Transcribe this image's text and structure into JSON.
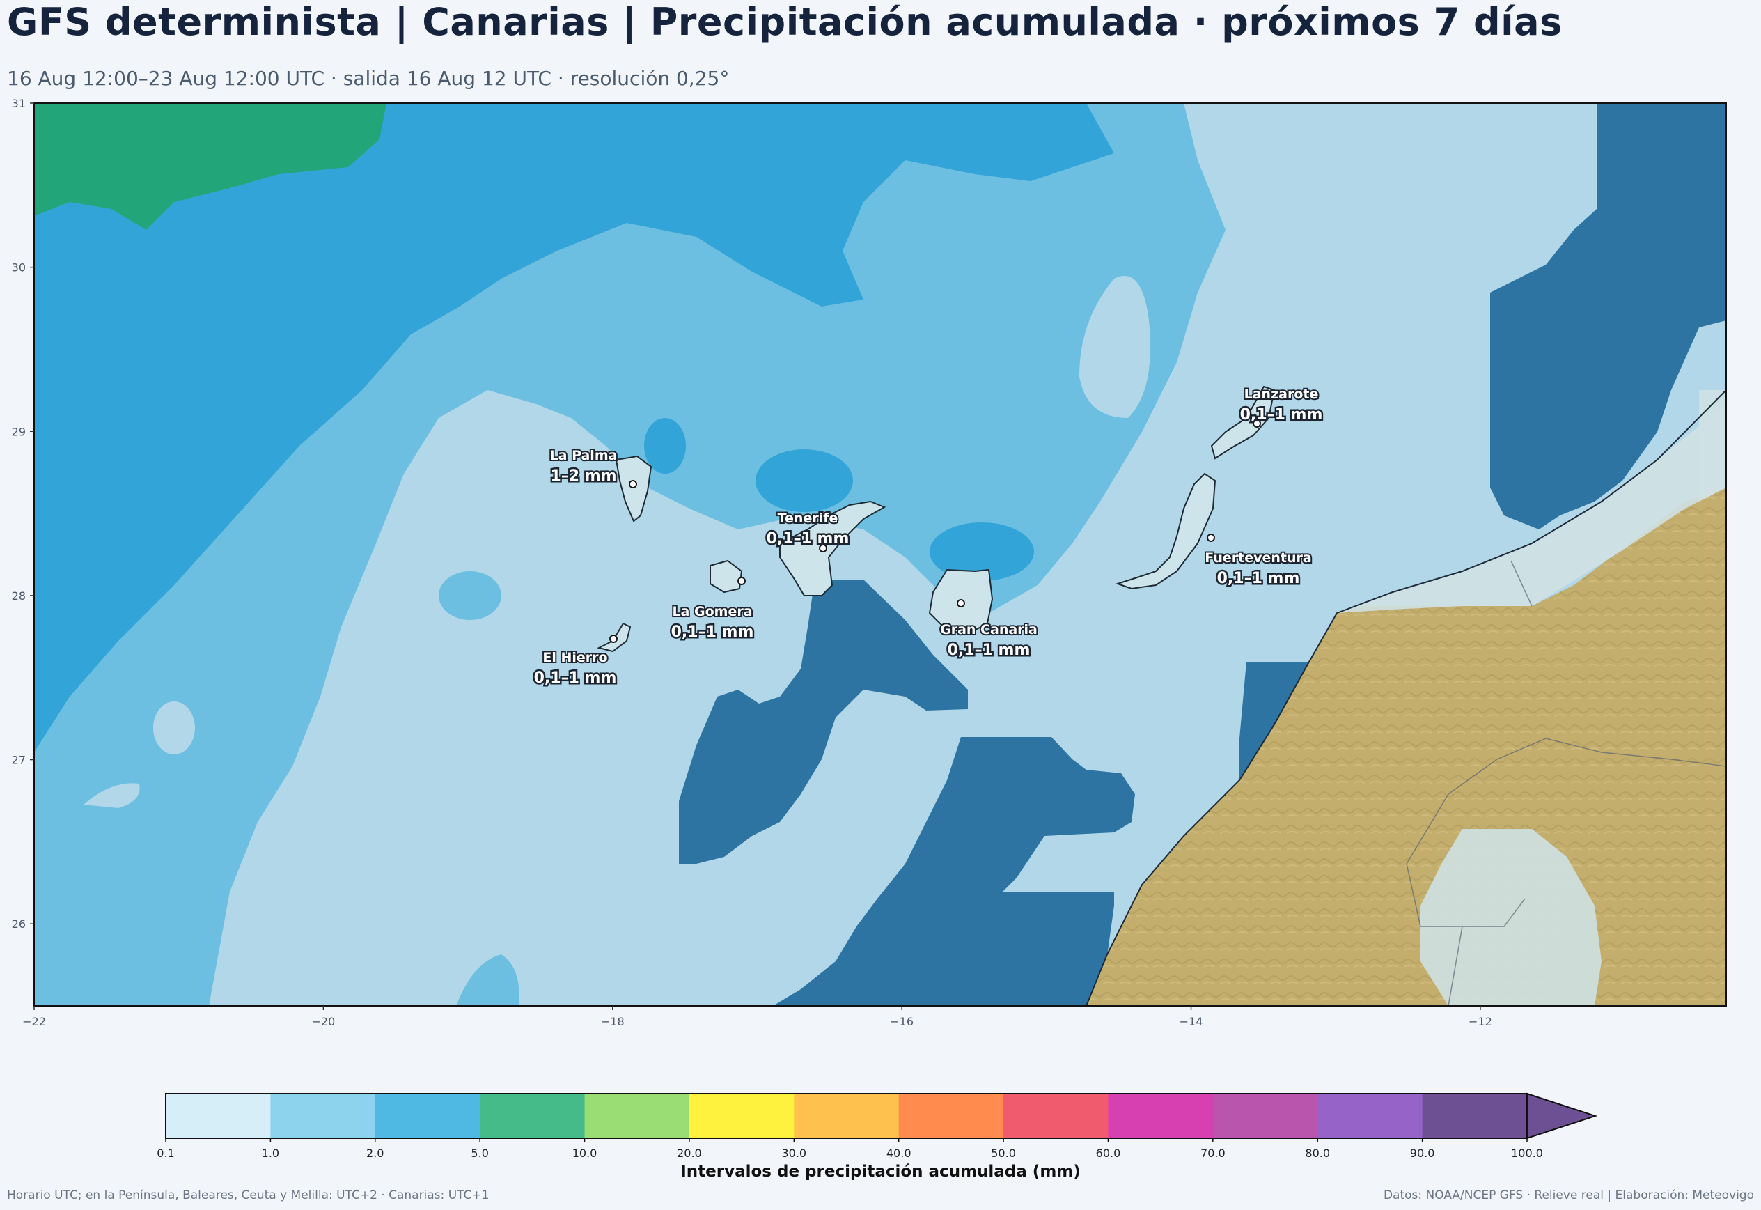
{
  "header": {
    "title": "GFS determinista | Canarias | Precipitación acumulada · próximos 7 días",
    "subtitle": "16 Aug 12:00–23 Aug 12:00 UTC · salida 16 Aug 12 UTC · resolución 0,25°"
  },
  "map": {
    "lon_range": [
      -22,
      -10.3
    ],
    "lat_range": [
      25.5,
      31
    ],
    "x_ticks": [
      "−22",
      "−20",
      "−18",
      "−16",
      "−14",
      "−12"
    ],
    "y_ticks": [
      "31",
      "30",
      "29",
      "28",
      "27",
      "26"
    ],
    "colors": {
      "ocean_light": "#b2d7e8",
      "ocean_mid": "#6cbfe0",
      "ocean_blue": "#33a4d8",
      "green_band": "#22a679",
      "dark_blue": "#2d74a3",
      "land": "#c4ae6e"
    },
    "islands": [
      {
        "name": "La Palma",
        "value": "1–2 mm"
      },
      {
        "name": "Tenerife",
        "value": "0,1–1 mm"
      },
      {
        "name": "La Gomera",
        "value": "0,1–1 mm"
      },
      {
        "name": "El Hierro",
        "value": "0,1–1 mm"
      },
      {
        "name": "Gran Canaria",
        "value": "0,1–1 mm"
      },
      {
        "name": "Lanzarote",
        "value": "0,1–1 mm"
      },
      {
        "name": "Fuerteventura",
        "value": "0,1–1 mm"
      }
    ]
  },
  "colorbar": {
    "title": "Intervalos de precipitación acumulada (mm)",
    "ticks": [
      "0.1",
      "1.0",
      "2.0",
      "5.0",
      "10.0",
      "20.0",
      "30.0",
      "40.0",
      "50.0",
      "60.0",
      "70.0",
      "80.0",
      "90.0",
      "100.0"
    ],
    "colors": [
      "#d6eef7",
      "#8dd3ee",
      "#4fb8e3",
      "#46bb8a",
      "#9add75",
      "#fff23f",
      "#ffc14d",
      "#ff8b4f",
      "#f05b6e",
      "#d640b0",
      "#b955ad",
      "#9664c8",
      "#6d4f93"
    ],
    "extend_color": "#6d4f93"
  },
  "footer": {
    "left": "Horario UTC; en la Península, Baleares, Ceuta y Melilla: UTC+2 · Canarias: UTC+1",
    "right": "Datos: NOAA/NCEP GFS · Relieve real | Elaboración: Meteovigo"
  }
}
